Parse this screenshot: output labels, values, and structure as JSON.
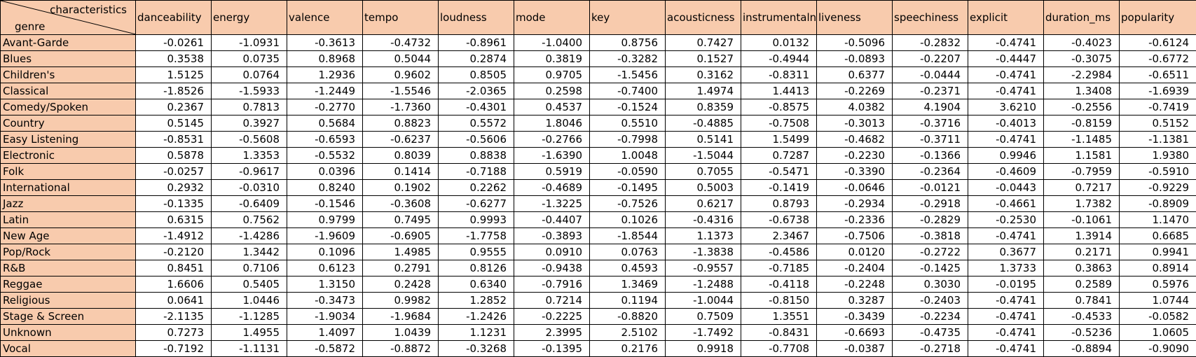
{
  "corner": {
    "top": "characteristics",
    "bottom": "genre"
  },
  "columns": [
    "danceability",
    "energy",
    "valence",
    "tempo",
    "loudness",
    "mode",
    "key",
    "acousticness",
    "instrumentalness",
    "liveness",
    "speechiness",
    "explicit",
    "duration_ms",
    "popularity"
  ],
  "rows": [
    {
      "genre": "Avant-Garde",
      "values": [
        "-0.0261",
        "-1.0931",
        "-0.3613",
        "-0.4732",
        "-0.8961",
        "-1.0400",
        "0.8756",
        "0.7427",
        "0.0132",
        "-0.5096",
        "-0.2832",
        "-0.4741",
        "-0.4023",
        "-0.6124"
      ]
    },
    {
      "genre": "Blues",
      "values": [
        "0.3538",
        "0.0735",
        "0.8968",
        "0.5044",
        "0.2874",
        "0.3819",
        "-0.3282",
        "0.1527",
        "-0.4944",
        "-0.0893",
        "-0.2207",
        "-0.4447",
        "-0.3075",
        "-0.6772"
      ]
    },
    {
      "genre": "Children's",
      "values": [
        "1.5125",
        "0.0764",
        "1.2936",
        "0.9602",
        "0.8505",
        "0.9705",
        "-1.5456",
        "0.3162",
        "-0.8311",
        "0.6377",
        "-0.0444",
        "-0.4741",
        "-2.2984",
        "-0.6511"
      ]
    },
    {
      "genre": "Classical",
      "values": [
        "-1.8526",
        "-1.5933",
        "-1.2449",
        "-1.5546",
        "-2.0365",
        "0.2598",
        "-0.7400",
        "1.4974",
        "1.4413",
        "-0.2269",
        "-0.2371",
        "-0.4741",
        "1.3408",
        "-1.6939"
      ]
    },
    {
      "genre": "Comedy/Spoken",
      "values": [
        "0.2367",
        "0.7813",
        "-0.2770",
        "-1.7360",
        "-0.4301",
        "0.4537",
        "-0.1524",
        "0.8359",
        "-0.8575",
        "4.0382",
        "4.1904",
        "3.6210",
        "-0.2556",
        "-0.7419"
      ]
    },
    {
      "genre": "Country",
      "values": [
        "0.5145",
        "0.3927",
        "0.5684",
        "0.8823",
        "0.5572",
        "1.8046",
        "0.5510",
        "-0.4885",
        "-0.7508",
        "-0.3013",
        "-0.3716",
        "-0.4013",
        "-0.8159",
        "0.5152"
      ]
    },
    {
      "genre": "Easy Listening",
      "values": [
        "-0.8531",
        "-0.5608",
        "-0.6593",
        "-0.6237",
        "-0.5606",
        "-0.2766",
        "-0.7998",
        "0.5141",
        "1.5499",
        "-0.4682",
        "-0.3711",
        "-0.4741",
        "-1.1485",
        "-1.1381"
      ]
    },
    {
      "genre": "Electronic",
      "values": [
        "0.5878",
        "1.3353",
        "-0.5532",
        "0.8039",
        "0.8838",
        "-1.6390",
        "1.0048",
        "-1.5044",
        "0.7287",
        "-0.2230",
        "-0.1366",
        "0.9946",
        "1.1581",
        "1.9380"
      ]
    },
    {
      "genre": "Folk",
      "values": [
        "-0.0257",
        "-0.9617",
        "0.0396",
        "0.1414",
        "-0.7188",
        "0.5919",
        "-0.0590",
        "0.7055",
        "-0.5471",
        "-0.3390",
        "-0.2364",
        "-0.4609",
        "-0.7959",
        "-0.5910"
      ]
    },
    {
      "genre": "International",
      "values": [
        "0.2932",
        "-0.0310",
        "0.8240",
        "0.1902",
        "0.2262",
        "-0.4689",
        "-0.1495",
        "0.5003",
        "-0.1419",
        "-0.0646",
        "-0.0121",
        "-0.0443",
        "0.7217",
        "-0.9229"
      ]
    },
    {
      "genre": "Jazz",
      "values": [
        "-0.1335",
        "-0.6409",
        "-0.1546",
        "-0.3608",
        "-0.6277",
        "-1.3225",
        "-0.7526",
        "0.6217",
        "0.8793",
        "-0.2934",
        "-0.2918",
        "-0.4661",
        "1.7382",
        "-0.8909"
      ]
    },
    {
      "genre": "Latin",
      "values": [
        "0.6315",
        "0.7562",
        "0.9799",
        "0.7495",
        "0.9993",
        "-0.4407",
        "0.1026",
        "-0.4316",
        "-0.6738",
        "-0.2336",
        "-0.2829",
        "-0.2530",
        "-0.1061",
        "1.1470"
      ]
    },
    {
      "genre": "New Age",
      "values": [
        "-1.4912",
        "-1.4286",
        "-1.9609",
        "-0.6905",
        "-1.7758",
        "-0.3893",
        "-1.8544",
        "1.1373",
        "2.3467",
        "-0.7506",
        "-0.3818",
        "-0.4741",
        "1.3914",
        "0.6685"
      ]
    },
    {
      "genre": "Pop/Rock",
      "values": [
        "-0.2120",
        "1.3442",
        "0.1096",
        "1.4985",
        "0.9555",
        "0.0910",
        "0.0763",
        "-1.3838",
        "-0.4586",
        "0.0120",
        "-0.2722",
        "0.3677",
        "0.2171",
        "0.9941"
      ]
    },
    {
      "genre": "R&B",
      "values": [
        "0.8451",
        "0.7106",
        "0.6123",
        "0.2791",
        "0.8126",
        "-0.9438",
        "0.4593",
        "-0.9557",
        "-0.7185",
        "-0.2404",
        "-0.1425",
        "1.3733",
        "0.3863",
        "0.8914"
      ]
    },
    {
      "genre": "Reggae",
      "values": [
        "1.6606",
        "0.5405",
        "1.3150",
        "0.2428",
        "0.6340",
        "-0.7916",
        "1.3469",
        "-1.2488",
        "-0.4118",
        "-0.2248",
        "0.3030",
        "-0.0195",
        "0.2589",
        "0.5976"
      ]
    },
    {
      "genre": "Religious",
      "values": [
        "0.0641",
        "1.0446",
        "-0.3473",
        "0.9982",
        "1.2852",
        "0.7214",
        "0.1194",
        "-1.0044",
        "-0.8150",
        "0.3287",
        "-0.2403",
        "-0.4741",
        "0.7841",
        "1.0744"
      ]
    },
    {
      "genre": "Stage & Screen",
      "values": [
        "-2.1135",
        "-1.1285",
        "-1.9034",
        "-1.9684",
        "-1.2426",
        "-0.2225",
        "-0.8820",
        "0.7509",
        "1.3551",
        "-0.3439",
        "-0.2234",
        "-0.4741",
        "-0.4533",
        "-0.0582"
      ]
    },
    {
      "genre": "Unknown",
      "values": [
        "0.7273",
        "1.4955",
        "1.4097",
        "1.0439",
        "1.1231",
        "2.3995",
        "2.5102",
        "-1.7492",
        "-0.8431",
        "-0.6693",
        "-0.4735",
        "-0.4741",
        "-0.5236",
        "1.0605"
      ]
    },
    {
      "genre": "Vocal",
      "values": [
        "-0.7192",
        "-1.1131",
        "-0.5872",
        "-0.8872",
        "-0.3268",
        "-0.1395",
        "0.2176",
        "0.9918",
        "-0.7708",
        "-0.0387",
        "-0.2718",
        "-0.4741",
        "-0.8894",
        "-0.9090"
      ]
    }
  ]
}
